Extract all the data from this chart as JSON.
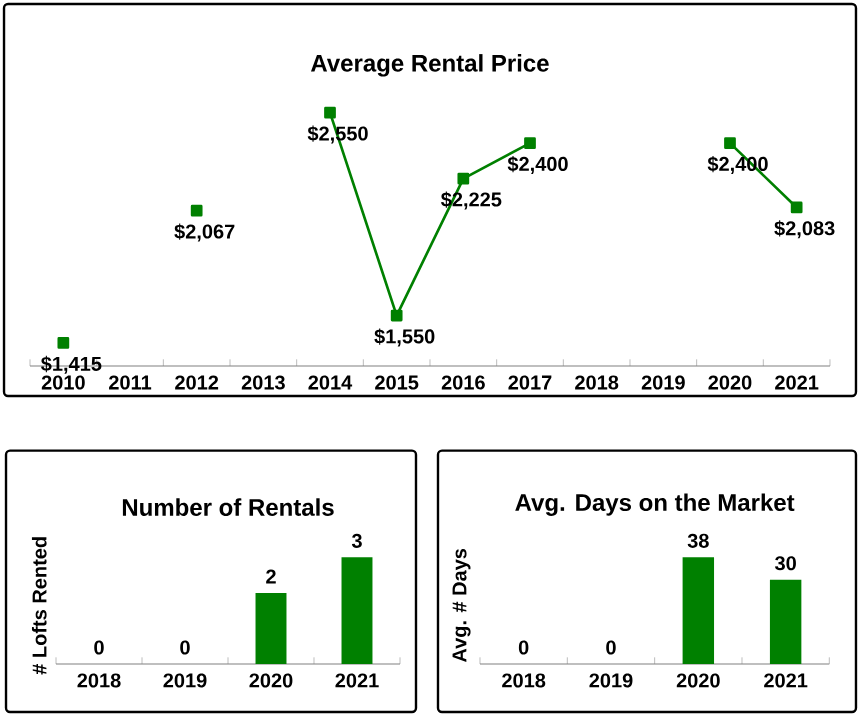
{
  "chart_data": [
    {
      "type": "line",
      "title": "Average Rental Price",
      "categories": [
        "2010",
        "2011",
        "2012",
        "2013",
        "2014",
        "2015",
        "2016",
        "2017",
        "2018",
        "2019",
        "2020",
        "2021"
      ],
      "values": [
        1415,
        null,
        2067,
        null,
        2550,
        1550,
        2225,
        2400,
        null,
        null,
        2400,
        2083
      ],
      "value_labels": [
        "$1,415",
        null,
        "$2,067",
        null,
        "$2,550",
        "$1,550",
        "$2,225",
        "$2,400",
        null,
        null,
        "$2,400",
        "$2,083"
      ],
      "color": "#008000",
      "marker": "square",
      "line_style": "solid"
    },
    {
      "type": "bar",
      "title": "Number of Rentals",
      "ylabel": "# Lofts Rented",
      "categories": [
        "2018",
        "2019",
        "2020",
        "2021"
      ],
      "values": [
        0,
        0,
        2,
        3
      ],
      "color": "#008000",
      "data_labels": true
    },
    {
      "type": "bar",
      "title": "Avg. Days on the Market",
      "ylabel": "Avg. # Days",
      "categories": [
        "2018",
        "2019",
        "2020",
        "2021"
      ],
      "values": [
        0,
        0,
        38,
        30
      ],
      "color": "#008000",
      "data_labels": true
    }
  ]
}
